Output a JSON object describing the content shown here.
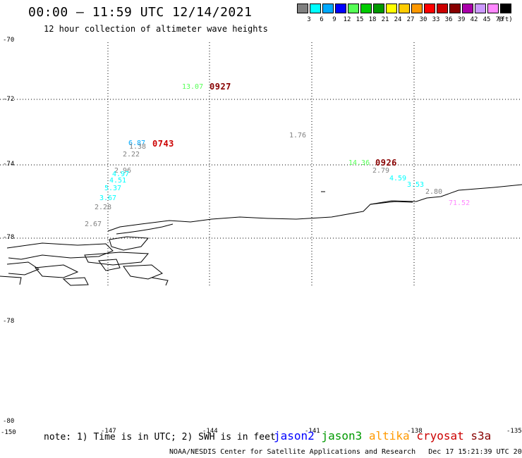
{
  "title": "00:00 – 11:59 UTC 12/14/2021",
  "subtitle": "12 hour collection of altimeter wave heights",
  "color_scale": {
    "unit": "(ft)",
    "bins": [
      {
        "label": "3",
        "color": "#808080"
      },
      {
        "label": "6",
        "color": "#00ffff"
      },
      {
        "label": "9",
        "color": "#00aaff"
      },
      {
        "label": "12",
        "color": "#0000ff"
      },
      {
        "label": "15",
        "color": "#55ff55"
      },
      {
        "label": "18",
        "color": "#00cc00"
      },
      {
        "label": "21",
        "color": "#009900"
      },
      {
        "label": "24",
        "color": "#ffff00"
      },
      {
        "label": "27",
        "color": "#ffcc00"
      },
      {
        "label": "30",
        "color": "#ff9900"
      },
      {
        "label": "33",
        "color": "#ff0000"
      },
      {
        "label": "36",
        "color": "#cc0000"
      },
      {
        "label": "39",
        "color": "#880000"
      },
      {
        "label": "42",
        "color": "#aa00aa"
      },
      {
        "label": "45",
        "color": "#cc99ff"
      },
      {
        "label": "70",
        "color": "#ff88ff"
      },
      {
        "label": "",
        "color": "#000000"
      }
    ]
  },
  "lat_labels": [
    "-70",
    "-72",
    "-74",
    "-76",
    "-78",
    "-78",
    "-80"
  ],
  "lon_labels": [
    "-150",
    "-147",
    "-144",
    "-141",
    "-138",
    "-135"
  ],
  "pass_times": [
    {
      "text": "0927",
      "color": "#880000"
    },
    {
      "text": "0743",
      "color": "#cc0000"
    },
    {
      "text": "0926",
      "color": "#880000"
    }
  ],
  "wave_heights": [
    {
      "text": "13.07",
      "color": "#55ff55"
    },
    {
      "text": "1.76",
      "color": "#808080"
    },
    {
      "text": "6.87",
      "color": "#00aaff"
    },
    {
      "text": "1.38",
      "color": "#808080"
    },
    {
      "text": "2.22",
      "color": "#808080"
    },
    {
      "text": "2.96",
      "color": "#808080"
    },
    {
      "text": "4.97",
      "color": "#00ffff"
    },
    {
      "text": "4.51",
      "color": "#00ffff"
    },
    {
      "text": "5.37",
      "color": "#00ffff"
    },
    {
      "text": "3.67",
      "color": "#00ffff"
    },
    {
      "text": "2.28",
      "color": "#808080"
    },
    {
      "text": "2.67",
      "color": "#808080"
    },
    {
      "text": "14.36",
      "color": "#55ff55"
    },
    {
      "text": "2.79",
      "color": "#808080"
    },
    {
      "text": "4.59",
      "color": "#00ffff"
    },
    {
      "text": "3.53",
      "color": "#00ffff"
    },
    {
      "text": "2.80",
      "color": "#808080"
    },
    {
      "text": "71.52",
      "color": "#ff88ff"
    }
  ],
  "note": "note: 1) Time is in UTC; 2) SWH is in feet",
  "satellites": [
    {
      "name": "jason2",
      "color": "#0000ff"
    },
    {
      "name": "jason3",
      "color": "#009900"
    },
    {
      "name": "altika",
      "color": "#ff9900"
    },
    {
      "name": "cryosat",
      "color": "#cc0000"
    },
    {
      "name": "s3a",
      "color": "#880000"
    }
  ],
  "credit": "NOAA/NESDIS Center for Satellite Applications and Research",
  "generated": "Dec 17 15:21:39 UTC 2021"
}
